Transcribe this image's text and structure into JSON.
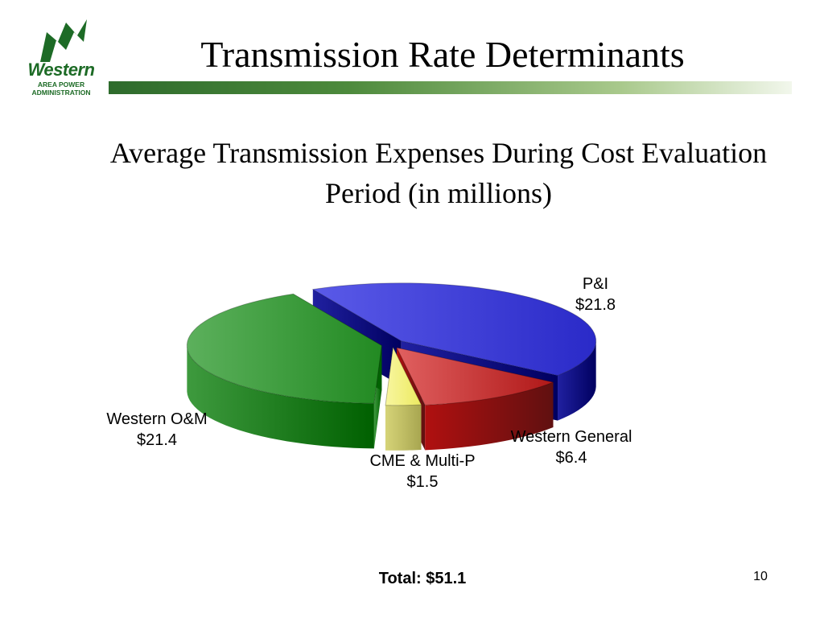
{
  "slide": {
    "title": "Transmission Rate Determinants",
    "subtitle": "Average Transmission Expenses During Cost Evaluation Period (in millions)",
    "total": "Total:  $51.1",
    "page_number": "10"
  },
  "logo": {
    "word": "Western",
    "line1": "AREA POWER",
    "line2": "ADMINISTRATION",
    "color": "#1d6b26"
  },
  "chart_data": {
    "type": "pie",
    "style": "3d-exploded",
    "title": "",
    "unit": "$ millions",
    "slices": [
      {
        "name": "P&I",
        "value": 21.8,
        "value_label": "$21.8",
        "color": "#3b3bd6"
      },
      {
        "name": "Western General",
        "value": 6.4,
        "value_label": "$6.4",
        "color": "#c02020"
      },
      {
        "name": "CME & Multi-P",
        "value": 1.5,
        "value_label": "$1.5",
        "color": "#f2f07c"
      },
      {
        "name": "Western O&M",
        "value": 21.4,
        "value_label": "$21.4",
        "color": "#2e9a2e"
      }
    ],
    "total": 51.1
  }
}
